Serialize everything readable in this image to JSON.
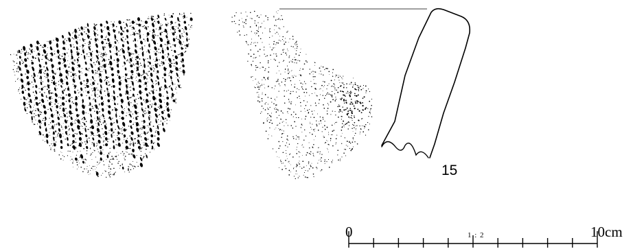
{
  "figure": {
    "specimen_number": "15",
    "scale": {
      "start_label": "0",
      "ratio_label": "1 : 2",
      "end_label": "10cm",
      "divisions": 10
    },
    "colors": {
      "ink": "#000000",
      "background": "#ffffff",
      "rim_line": "#666666"
    }
  }
}
